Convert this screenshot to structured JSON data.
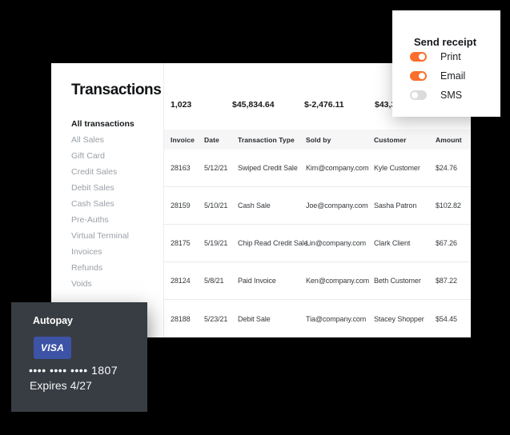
{
  "panel": {
    "title": "Transactions",
    "sidebar": {
      "items": [
        {
          "label": "All transactions",
          "active": true
        },
        {
          "label": "All Sales",
          "active": false
        },
        {
          "label": "Gift Card",
          "active": false
        },
        {
          "label": "Credit Sales",
          "active": false
        },
        {
          "label": "Debit Sales",
          "active": false
        },
        {
          "label": "Cash Sales",
          "active": false
        },
        {
          "label": "Pre-Auths",
          "active": false
        },
        {
          "label": "Virtual Terminal",
          "active": false
        },
        {
          "label": "Invoices",
          "active": false
        },
        {
          "label": "Refunds",
          "active": false
        },
        {
          "label": "Voids",
          "active": false
        }
      ]
    },
    "stats": [
      "1,023",
      "$45,834.64",
      "$-2,476.11",
      "$43,3"
    ],
    "table": {
      "columns": [
        "Invoice",
        "Date",
        "Transaction Type",
        "Sold by",
        "Customer",
        "Amount"
      ],
      "rows": [
        [
          "28163",
          "5/12/21",
          "Swiped Credit Sale",
          "Kim@company.com",
          "Kyle Customer",
          "$24.76"
        ],
        [
          "28159",
          "5/10/21",
          "Cash Sale",
          "Joe@company.com",
          "Sasha Patron",
          "$102.82"
        ],
        [
          "28175",
          "5/19/21",
          "Chip Read Credit Sale",
          "Lin@company.com",
          "Clark Client",
          "$67.26"
        ],
        [
          "28124",
          "5/8/21",
          "Paid Invoice",
          "Ken@company.com",
          "Beth Customer",
          "$87.22"
        ],
        [
          "28188",
          "5/23/21",
          "Debit Sale",
          "Tia@company.com",
          "Stacey Shopper",
          "$54.45"
        ]
      ]
    }
  },
  "receipt_card": {
    "title": "Send receipt",
    "toggles": [
      {
        "label": "Print",
        "on": true
      },
      {
        "label": "Email",
        "on": true
      },
      {
        "label": "SMS",
        "on": false
      }
    ]
  },
  "autopay_card": {
    "title": "Autopay",
    "brand": "VISA",
    "number_masked": "•••• •••• •••• 1807",
    "expires": "Expires 4/27"
  },
  "colors": {
    "accent_orange": "#fa6e2d",
    "visa_blue": "#3d53a6",
    "card_dark": "#383d43",
    "table_header_bg": "#f6f6f7"
  }
}
